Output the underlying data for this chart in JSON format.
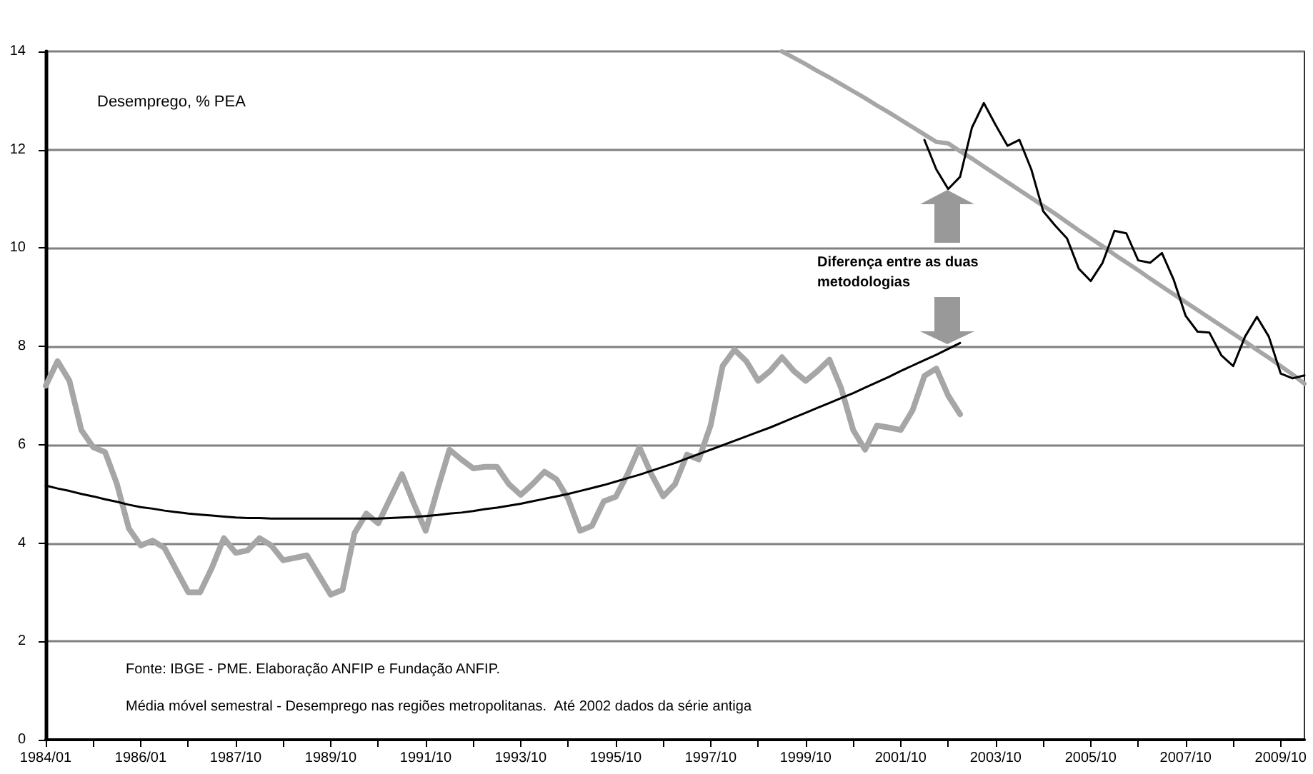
{
  "chart_data": {
    "type": "line",
    "ylabel": "Desemprego, % PEA",
    "categories": [
      "1984/01",
      null,
      null,
      null,
      null,
      null,
      null,
      null,
      "1986/01",
      null,
      null,
      null,
      null,
      null,
      null,
      null,
      "1987/10",
      null,
      null,
      null,
      null,
      null,
      null,
      null,
      "1989/10",
      null,
      null,
      null,
      null,
      null,
      null,
      null,
      "1991/10",
      null,
      null,
      null,
      null,
      null,
      null,
      null,
      "1993/10",
      null,
      null,
      null,
      null,
      null,
      null,
      null,
      "1995/10",
      null,
      null,
      null,
      null,
      null,
      null,
      null,
      "1997/10",
      null,
      null,
      null,
      null,
      null,
      null,
      null,
      "1999/10",
      null,
      null,
      null,
      null,
      null,
      null,
      null,
      "2001/10",
      null,
      null,
      null,
      null,
      null,
      null,
      null,
      "2003/10",
      null,
      null,
      null,
      null,
      null,
      null,
      null,
      "2005/10",
      null,
      null,
      null,
      null,
      null,
      null,
      null,
      "2007/10",
      null,
      null,
      null,
      null,
      null,
      null,
      null,
      "2009/10",
      null,
      null
    ],
    "series": [
      {
        "color": "#a6a6a6",
        "values": [
          7.2,
          7.7,
          7.3,
          6.3,
          5.95,
          5.85,
          5.2,
          4.3,
          3.95,
          4.05,
          3.9,
          3.45,
          3.0,
          3.0,
          3.5,
          4.1,
          3.8,
          3.85,
          4.1,
          3.95,
          3.65,
          3.7,
          3.75,
          3.35,
          2.95,
          3.05,
          4.2,
          4.6,
          4.4,
          4.9,
          5.4,
          4.8,
          4.25,
          5.1,
          5.9,
          5.7,
          5.52,
          5.55,
          5.55,
          5.2,
          4.98,
          5.2,
          5.45,
          5.3,
          4.9,
          4.25,
          4.35,
          4.85,
          4.94,
          5.4,
          5.95,
          5.4,
          4.95,
          5.2,
          5.8,
          5.7,
          6.4,
          7.6,
          7.93,
          7.7,
          7.3,
          7.5,
          7.78,
          7.5,
          7.3,
          7.5,
          7.73,
          7.14,
          6.3,
          5.9,
          6.39,
          6.35,
          6.3,
          6.7,
          7.4,
          7.55,
          7.0,
          6.62,
          null,
          null,
          null,
          null,
          null,
          null,
          null,
          null,
          null,
          null,
          null,
          null,
          null,
          null,
          null,
          null,
          null,
          null,
          null,
          null,
          null,
          null,
          null,
          null,
          null,
          null,
          null,
          null,
          null
        ]
      },
      {
        "color": "#000000",
        "values": [
          5.17,
          5.11,
          5.06,
          5.0,
          4.95,
          4.89,
          4.84,
          4.78,
          4.73,
          4.7,
          4.66,
          4.63,
          4.6,
          4.58,
          4.56,
          4.54,
          4.52,
          4.51,
          4.51,
          4.5,
          4.5,
          4.5,
          4.5,
          4.5,
          4.5,
          4.5,
          4.5,
          4.5,
          4.5,
          4.51,
          4.52,
          4.53,
          4.55,
          4.57,
          4.6,
          4.62,
          4.65,
          4.69,
          4.72,
          4.76,
          4.8,
          4.85,
          4.9,
          4.95,
          5.0,
          5.06,
          5.12,
          5.18,
          5.25,
          5.32,
          5.39,
          5.47,
          5.55,
          5.63,
          5.72,
          5.81,
          5.9,
          5.99,
          6.08,
          6.17,
          6.26,
          6.35,
          6.45,
          6.55,
          6.65,
          6.75,
          6.85,
          6.95,
          7.05,
          7.16,
          7.27,
          7.38,
          7.5,
          7.61,
          7.72,
          7.83,
          7.95,
          8.07,
          null,
          null,
          null,
          null,
          null,
          null,
          null,
          null,
          null,
          null,
          null,
          null,
          null,
          null,
          null,
          null,
          null,
          null,
          null,
          null,
          null,
          null,
          null,
          null,
          null,
          null,
          null,
          null,
          null
        ]
      },
      {
        "color": "#000000",
        "values": [
          null,
          null,
          null,
          null,
          null,
          null,
          null,
          null,
          null,
          null,
          null,
          null,
          null,
          null,
          null,
          null,
          null,
          null,
          null,
          null,
          null,
          null,
          null,
          null,
          null,
          null,
          null,
          null,
          null,
          null,
          null,
          null,
          null,
          null,
          null,
          null,
          null,
          null,
          null,
          null,
          null,
          null,
          null,
          null,
          null,
          null,
          null,
          null,
          null,
          null,
          null,
          null,
          null,
          null,
          null,
          null,
          null,
          null,
          null,
          null,
          null,
          null,
          null,
          null,
          null,
          null,
          null,
          null,
          null,
          null,
          null,
          null,
          null,
          null,
          12.2,
          11.6,
          11.2,
          11.45,
          12.45,
          12.95,
          12.5,
          12.08,
          12.2,
          11.6,
          10.75,
          10.46,
          10.2,
          9.58,
          9.33,
          9.7,
          10.35,
          10.3,
          9.75,
          9.7,
          9.9,
          9.35,
          8.62,
          8.3,
          8.28,
          7.82,
          7.6,
          8.2,
          8.6,
          8.2,
          7.45,
          7.35,
          7.41
        ]
      },
      {
        "color": "#a6a6a6",
        "values": [
          null,
          null,
          null,
          null,
          null,
          null,
          null,
          null,
          null,
          null,
          null,
          null,
          null,
          null,
          null,
          null,
          null,
          null,
          null,
          null,
          null,
          null,
          null,
          null,
          null,
          null,
          null,
          null,
          null,
          null,
          null,
          null,
          null,
          null,
          null,
          null,
          null,
          null,
          null,
          null,
          null,
          null,
          null,
          null,
          null,
          null,
          null,
          null,
          null,
          null,
          null,
          null,
          null,
          null,
          null,
          null,
          null,
          null,
          null,
          null,
          null,
          null,
          14.0,
          13.87,
          13.74,
          13.6,
          13.47,
          13.33,
          13.19,
          13.05,
          12.9,
          12.76,
          12.61,
          12.46,
          12.31,
          12.16,
          12.13,
          11.97,
          11.82,
          11.66,
          11.5,
          11.34,
          11.18,
          11.02,
          10.86,
          10.7,
          10.53,
          10.36,
          10.2,
          10.04,
          9.87,
          9.71,
          9.55,
          9.38,
          9.22,
          9.06,
          8.9,
          8.74,
          8.58,
          8.42,
          8.26,
          8.1,
          7.93,
          7.77,
          7.6,
          7.43,
          7.24
        ]
      }
    ],
    "ylim": [
      0,
      14
    ],
    "yticks": [
      0,
      2,
      4,
      6,
      8,
      10,
      12,
      14
    ],
    "grid": "y",
    "annotations": [
      "Diferença entre as duas\nmetodologias",
      "Fonte: IBGE - PME. Elaboração ANFIP e Fundação ANFIP.",
      "Média móvel semestral - Desemprego nas regiões metropolitanas.  Até 2002 dados da série antiga"
    ]
  }
}
